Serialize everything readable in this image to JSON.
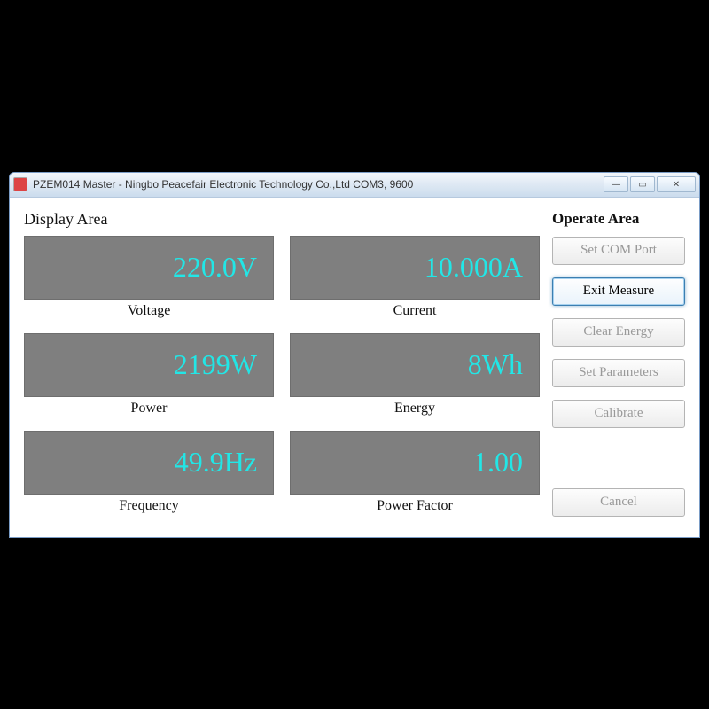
{
  "window": {
    "title": "PZEM014 Master - Ningbo Peacefair Electronic Technology Co.,Ltd  COM3, 9600"
  },
  "display": {
    "section_label": "Display Area",
    "items": [
      {
        "value": "220.0V",
        "label": "Voltage"
      },
      {
        "value": "10.000A",
        "label": "Current"
      },
      {
        "value": "2199W",
        "label": "Power"
      },
      {
        "value": "8Wh",
        "label": "Energy"
      },
      {
        "value": "49.9Hz",
        "label": "Frequency"
      },
      {
        "value": "1.00",
        "label": "Power Factor"
      }
    ]
  },
  "operate": {
    "section_label": "Operate Area",
    "buttons": {
      "set_com": "Set COM Port",
      "exit_measure": "Exit Measure",
      "clear_energy": "Clear Energy",
      "set_params": "Set Parameters",
      "calibrate": "Calibrate",
      "cancel": "Cancel"
    }
  },
  "colors": {
    "panel_bg": "#7f7f7f",
    "value_text": "#22e6e6",
    "window_bg": "#ffffff",
    "body_bg": "#000000"
  }
}
